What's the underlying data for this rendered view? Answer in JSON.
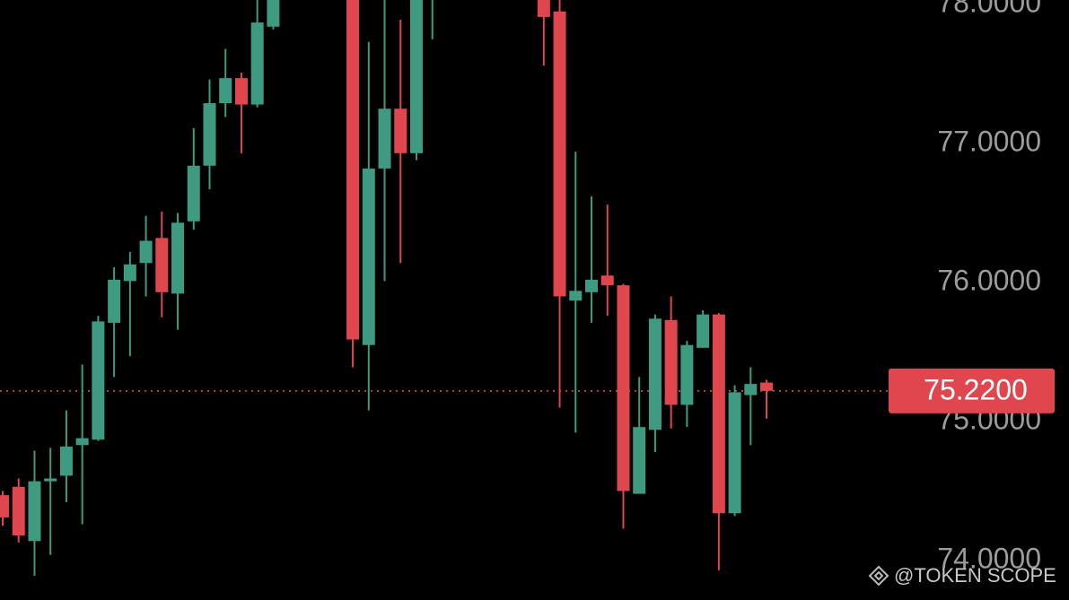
{
  "chart_data": {
    "type": "candlestick",
    "categories": [
      null,
      null,
      null,
      null,
      null,
      null,
      null,
      null,
      null,
      null,
      null,
      null,
      null,
      null,
      null,
      null,
      null,
      null,
      null,
      null,
      null,
      null,
      null,
      null,
      null,
      null,
      null,
      null,
      null,
      null,
      null,
      null,
      null,
      null,
      null,
      null,
      null,
      null,
      null,
      null,
      null,
      null,
      null,
      null,
      null,
      null,
      null,
      null,
      null
    ],
    "open": [
      74.47,
      74.53,
      74.14,
      74.57,
      74.61,
      74.83,
      74.87,
      75.71,
      76.01,
      76.14,
      76.32,
      75.92,
      76.44,
      76.84,
      77.29,
      77.47,
      77.28,
      77.84,
      null,
      null,
      null,
      null,
      78.1,
      75.55,
      76.82,
      77.25,
      76.93,
      78.1,
      null,
      null,
      null,
      null,
      null,
      null,
      78.1,
      77.95,
      75.87,
      75.93,
      76.05,
      75.98,
      74.48,
      74.94,
      75.73,
      75.12,
      75.53,
      75.77,
      74.34,
      75.19,
      75.28
    ],
    "high": [
      74.5,
      74.59,
      74.79,
      74.81,
      75.08,
      75.41,
      75.76,
      76.11,
      76.22,
      76.48,
      76.51,
      76.5,
      77.11,
      77.46,
      77.68,
      77.51,
      78.05,
      78.2,
      null,
      null,
      null,
      null,
      78.2,
      77.73,
      78.05,
      77.89,
      78.2,
      78.3,
      null,
      null,
      null,
      null,
      null,
      null,
      78.2,
      78.05,
      76.94,
      76.62,
      76.56,
      75.99,
      75.32,
      75.77,
      75.9,
      75.58,
      75.8,
      75.78,
      75.26,
      75.39,
      75.3
    ],
    "low": [
      74.25,
      74.13,
      73.89,
      74.04,
      74.42,
      74.26,
      74.86,
      75.32,
      75.47,
      75.9,
      75.75,
      75.66,
      76.38,
      76.67,
      77.19,
      76.93,
      77.26,
      77.82,
      null,
      null,
      null,
      null,
      75.39,
      75.08,
      76.01,
      76.14,
      76.88,
      77.75,
      null,
      null,
      null,
      null,
      null,
      null,
      77.56,
      75.1,
      74.92,
      75.71,
      75.76,
      74.23,
      74.48,
      74.78,
      74.95,
      74.96,
      75.53,
      73.93,
      74.32,
      74.83,
      75.02
    ],
    "close": [
      74.31,
      74.18,
      74.57,
      74.59,
      74.82,
      74.88,
      75.72,
      76.02,
      76.13,
      76.3,
      75.93,
      76.43,
      76.84,
      77.29,
      77.47,
      77.28,
      77.87,
      78.1,
      null,
      null,
      null,
      null,
      75.59,
      76.82,
      77.25,
      76.93,
      78.1,
      78.2,
      null,
      null,
      null,
      null,
      null,
      null,
      77.91,
      75.9,
      75.94,
      76.02,
      75.98,
      74.5,
      74.96,
      75.74,
      75.12,
      75.55,
      75.77,
      74.34,
      75.21,
      75.27,
      75.22
    ],
    "up_color": "#3f9a82",
    "down_color": "#e0464e",
    "ylim": [
      73.716,
      78.032
    ],
    "yticks": [
      {
        "value": 74,
        "label": "74.0000"
      },
      {
        "value": 75,
        "label": "75.0000"
      },
      {
        "value": 76,
        "label": "76.0000"
      },
      {
        "value": 77,
        "label": "77.0000"
      },
      {
        "value": 78,
        "label": "78.0000"
      }
    ],
    "last_price": {
      "value": 75.22,
      "label": "75.2200"
    },
    "watermark": "@TOKEN SCOPE"
  }
}
